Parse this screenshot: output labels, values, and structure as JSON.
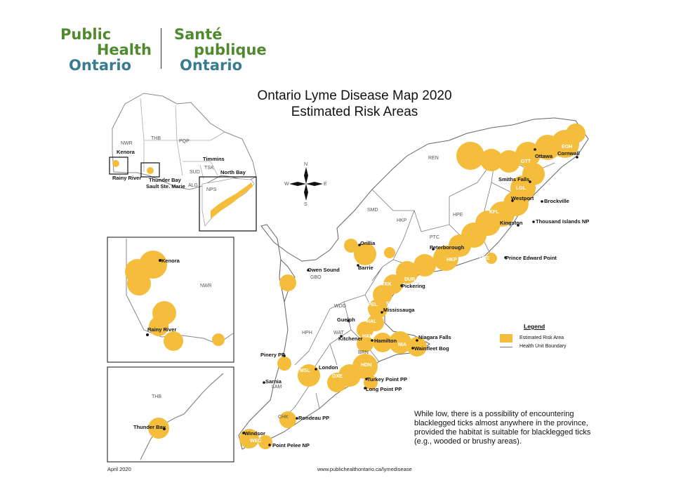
{
  "colors": {
    "green": "#4f8a2e",
    "teal": "#3a7b8f",
    "risk": "#f4be3c",
    "boundary": "#7a7a7a"
  },
  "logo": {
    "en_line1": "Public",
    "en_line2": "Health",
    "en_line3": "Ontario",
    "fr_line1": "Santé",
    "fr_line2": "publique",
    "fr_line3": "Ontario"
  },
  "title": {
    "line1": "Ontario Lyme Disease Map 2020",
    "line2": "Estimated Risk Areas"
  },
  "compass": {
    "n": "N",
    "s": "S",
    "e": "E",
    "w": "W"
  },
  "places": {
    "kenora": "Kenora",
    "rainy_river": "Rainy River",
    "thunder_bay": "Thunder Bay",
    "sault": "Sault Ste. Marie",
    "timmins": "Timmins",
    "north_bay": "North Bay",
    "ottawa": "Ottawa",
    "cornwall": "Cornwall",
    "smiths_falls": "Smiths Falls",
    "westport": "Westport",
    "brockville": "Brockville",
    "kingston": "Kingston",
    "thousand_islands": "Thousand Islands NP",
    "peterborough": "Peterborough",
    "prince_edward": "Prince Edward Point",
    "orillia": "Orillia",
    "barrie": "Barrie",
    "owen_sound": "Owen Sound",
    "pickering": "Pickering",
    "mississauga": "Mississauga",
    "guelph": "Guelph",
    "kitchener": "Kitchener",
    "hamilton": "Hamilton",
    "niagara_falls": "Niagara Falls",
    "wainfleet": "Wainfleet Bog",
    "pinery": "Pinery PP",
    "london": "London",
    "sarnia": "Sarnia",
    "turkey_point": "Turkey Point PP",
    "long_point": "Long Point PP",
    "rondeau": "Rondeau PP",
    "windsor": "Windsor",
    "point_pelee": "Point Pelee NP"
  },
  "units": {
    "nwr": "NWR",
    "thb": "THB",
    "pqp": "PQP",
    "sud": "SUD",
    "tsk": "TSK",
    "alg": "ALG",
    "npsm": "NPS",
    "ren": "REN",
    "eoh": "EOH",
    "ott": "OTT",
    "lgl": "LGL",
    "kfl": "KFL",
    "hpe": "HPE",
    "hkp": "HKP",
    "ptc": "PTC",
    "smd": "SMD",
    "dur": "DUR",
    "yrk": "YRK",
    "tor": "TOR",
    "pel": "PEL",
    "hal": "HAL",
    "wdg": "WDG",
    "wat": "WAT",
    "ham": "HAM",
    "nia": "NIA",
    "hph": "HPH",
    "brn": "BRN",
    "hdn": "HDN",
    "oxe": "OXE",
    "msl": "MSL",
    "lam": "LAM",
    "chk": "CHK",
    "wec": "WEC",
    "gbo": "GBO"
  },
  "legend": {
    "title": "Legend",
    "risk": "Estimated Risk Area",
    "boundary": "Health Unit Boundary"
  },
  "note": "While low, there is a possibility of encountering blacklegged ticks almost anywhere in the province, provided the habitat is suitable for blacklegged ticks (e.g., wooded or brushy areas).",
  "footer": {
    "date": "April 2020",
    "url": "www.publichealthontario.ca/lymedisease"
  }
}
